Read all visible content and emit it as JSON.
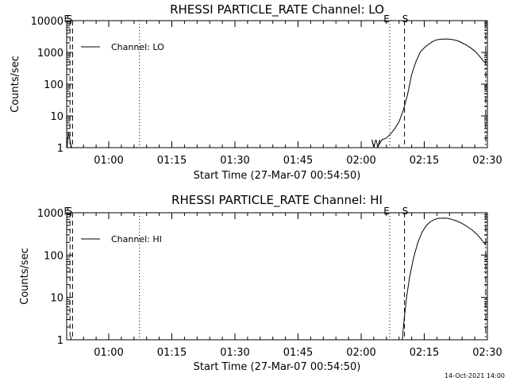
{
  "footer": {
    "timestamp": "14-Oct-2021 14:00"
  },
  "chart_data": [
    {
      "type": "line",
      "title": "RHESSI PARTICLE_RATE Channel: LO",
      "xlabel": "Start Time (27-Mar-07 00:54:50)",
      "ylabel": "Counts/sec",
      "yscale": "log",
      "ylim": [
        1,
        10000
      ],
      "xlim_min": [
        -4,
        96
      ],
      "x_ticks": [
        6,
        21,
        36,
        51,
        66,
        81,
        96
      ],
      "x_tick_labels": [
        "01:00",
        "01:15",
        "01:30",
        "01:45",
        "02:00",
        "02:15",
        "02:30"
      ],
      "y_ticks": [
        1,
        10,
        100,
        1000,
        10000
      ],
      "y_tick_labels": [
        "1",
        "10",
        "100",
        "1000",
        "10000"
      ],
      "legend": {
        "label": "Channel: LO",
        "position": "top-left"
      },
      "vlines": [
        {
          "x": -3.2,
          "style": "dashed",
          "label": "E"
        },
        {
          "x": -2.6,
          "style": "dashed",
          "label": "S"
        },
        {
          "x": 13.3,
          "style": "dotted",
          "label": ""
        },
        {
          "x": 72.8,
          "style": "dotted",
          "label": "E"
        },
        {
          "x": 76.3,
          "style": "dashed",
          "label": "S"
        },
        {
          "x": 95.6,
          "style": "dashdot",
          "label": ""
        }
      ],
      "markers": [
        {
          "x": 69.5,
          "label": "W"
        }
      ],
      "series": [
        {
          "name": "Channel: LO",
          "x": [
            -3.9,
            -3.6,
            -3.3,
            -3.0,
            -2.8,
            69.8,
            71.0,
            72.0,
            73.0,
            74.0,
            75.0,
            76.0,
            77.0,
            78.0,
            79.0,
            80.0,
            81.0,
            82.0,
            83.0,
            84.0,
            85.0,
            86.0,
            87.0,
            88.0,
            89.0,
            90.0,
            91.0,
            92.0,
            93.0,
            94.0,
            95.0,
            95.6
          ],
          "y": [
            1.0,
            3.0,
            2.0,
            1.2,
            1.0,
            1.0,
            1.8,
            2.0,
            2.7,
            4.0,
            6.5,
            15,
            45,
            200,
            500,
            1000,
            1400,
            1800,
            2200,
            2500,
            2600,
            2650,
            2600,
            2500,
            2300,
            2000,
            1700,
            1400,
            1100,
            800,
            550,
            450
          ]
        }
      ]
    },
    {
      "type": "line",
      "title": "RHESSI PARTICLE_RATE Channel: HI",
      "xlabel": "Start Time (27-Mar-07 00:54:50)",
      "ylabel": "Counts/sec",
      "yscale": "log",
      "ylim": [
        1,
        1000
      ],
      "xlim_min": [
        -4,
        96
      ],
      "x_ticks": [
        6,
        21,
        36,
        51,
        66,
        81,
        96
      ],
      "x_tick_labels": [
        "01:00",
        "01:15",
        "01:30",
        "01:45",
        "02:00",
        "02:15",
        "02:30"
      ],
      "y_ticks": [
        1,
        10,
        100,
        1000
      ],
      "y_tick_labels": [
        "1",
        "10",
        "100",
        "1000"
      ],
      "legend": {
        "label": "Channel: HI",
        "position": "top-left"
      },
      "vlines": [
        {
          "x": -3.2,
          "style": "dashed",
          "label": "E"
        },
        {
          "x": -2.6,
          "style": "dashed",
          "label": "S"
        },
        {
          "x": 13.3,
          "style": "dotted",
          "label": ""
        },
        {
          "x": 72.8,
          "style": "dotted",
          "label": "E"
        },
        {
          "x": 76.3,
          "style": "dashed",
          "label": "S"
        },
        {
          "x": 95.6,
          "style": "dashdot",
          "label": ""
        }
      ],
      "markers": [],
      "series": [
        {
          "name": "Channel: HI",
          "x": [
            75.8,
            76.2,
            76.8,
            77.5,
            78.5,
            79.5,
            80.5,
            81.5,
            82.5,
            83.5,
            84.5,
            85.5,
            86.5,
            87.5,
            88.5,
            89.5,
            90.5,
            91.5,
            92.5,
            93.5,
            94.5,
            95.6
          ],
          "y": [
            1,
            3,
            10,
            30,
            90,
            200,
            350,
            500,
            620,
            700,
            740,
            750,
            740,
            700,
            650,
            590,
            520,
            450,
            380,
            310,
            240,
            170
          ]
        }
      ]
    }
  ]
}
